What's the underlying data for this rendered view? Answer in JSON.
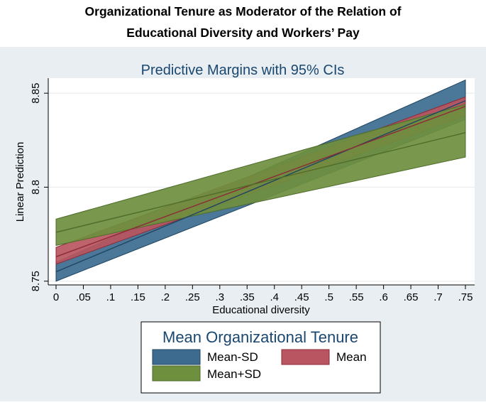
{
  "figure": {
    "title_line1": "Organizational Tenure as Moderator of the Relation of",
    "title_line2": "Educational Diversity and Workers’ Pay"
  },
  "chart_data": {
    "type": "line",
    "title": "Predictive Margins with 95% CIs",
    "xlabel": "Educational diversity",
    "ylabel": "Linear Prediction",
    "x_ticks": [
      "0",
      ".05",
      ".1",
      ".15",
      ".2",
      ".25",
      ".3",
      ".35",
      ".4",
      ".45",
      ".5",
      ".55",
      ".6",
      ".65",
      ".7",
      ".75"
    ],
    "y_ticks": [
      "8.75",
      "8.8",
      "8.85"
    ],
    "xlim": [
      0,
      0.75
    ],
    "ylim": [
      8.748,
      8.858
    ],
    "grid": true,
    "legend": {
      "title": "Mean Organizational Tenure",
      "placement": "bottom",
      "entries": [
        "Mean-SD",
        "Mean",
        "Mean+SD"
      ]
    },
    "x": [
      0,
      0.75
    ],
    "series": [
      {
        "name": "Mean-SD",
        "color": "#3c6b8f",
        "line_color": "#1f4560",
        "values": [
          8.755,
          8.846
        ],
        "ci_lower": [
          8.75,
          8.836
        ],
        "ci_upper": [
          8.76,
          8.857
        ]
      },
      {
        "name": "Mean",
        "color": "#b85560",
        "line_color": "#8c2a36",
        "values": [
          8.763,
          8.843
        ],
        "ci_lower": [
          8.759,
          8.838
        ],
        "ci_upper": [
          8.768,
          8.848
        ]
      },
      {
        "name": "Mean+SD",
        "color": "#6e8f3e",
        "line_color": "#4e6b2a",
        "values": [
          8.776,
          8.829
        ],
        "ci_lower": [
          8.769,
          8.816
        ],
        "ci_upper": [
          8.783,
          8.844
        ]
      }
    ]
  }
}
